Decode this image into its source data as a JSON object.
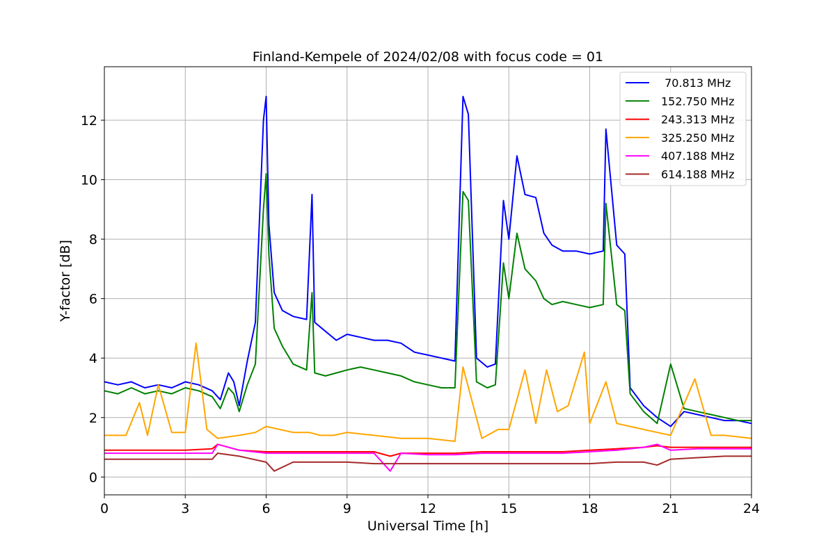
{
  "chart_data": {
    "type": "line",
    "title": "Finland-Kempele of 2024/02/08 with focus code = 01",
    "xlabel": "Universal Time [h]",
    "ylabel": "Y-factor [dB]",
    "xlim": [
      0,
      24
    ],
    "ylim": [
      -0.6,
      13.8
    ],
    "xticks": [
      0,
      3,
      6,
      9,
      12,
      15,
      18,
      21,
      24
    ],
    "yticks": [
      0,
      2,
      4,
      6,
      8,
      10,
      12
    ],
    "grid": true,
    "legend_position": "top-right",
    "series": [
      {
        "name": " 70.813 MHz",
        "color": "#0000ff",
        "x": [
          0,
          0.5,
          1,
          1.5,
          2,
          2.5,
          3,
          3.5,
          4,
          4.3,
          4.6,
          4.8,
          5,
          5.3,
          5.6,
          5.9,
          6.0,
          6.1,
          6.3,
          6.6,
          7.0,
          7.5,
          7.7,
          7.8,
          8.2,
          8.6,
          9.0,
          9.5,
          10.0,
          10.5,
          11.0,
          11.5,
          12.0,
          12.5,
          13.0,
          13.3,
          13.5,
          13.8,
          14.2,
          14.5,
          14.8,
          15.0,
          15.3,
          15.6,
          16.0,
          16.3,
          16.6,
          17.0,
          17.5,
          18.0,
          18.5,
          18.6,
          19.0,
          19.3,
          19.5,
          20.0,
          20.5,
          21.0,
          21.5,
          22.0,
          22.5,
          23.0,
          23.5,
          24.0
        ],
        "values": [
          3.2,
          3.1,
          3.2,
          3.0,
          3.1,
          3.0,
          3.2,
          3.1,
          2.9,
          2.6,
          3.5,
          3.2,
          2.4,
          3.9,
          5.2,
          12.0,
          12.8,
          8.5,
          6.2,
          5.6,
          5.4,
          5.3,
          9.5,
          5.2,
          4.9,
          4.6,
          4.8,
          4.7,
          4.6,
          4.6,
          4.5,
          4.2,
          4.1,
          4.0,
          3.9,
          12.8,
          12.2,
          4.0,
          3.7,
          3.8,
          9.3,
          8.0,
          10.8,
          9.5,
          9.4,
          8.2,
          7.8,
          7.6,
          7.6,
          7.5,
          7.6,
          11.7,
          7.8,
          7.5,
          3.0,
          2.4,
          2.0,
          1.7,
          2.2,
          2.1,
          2.0,
          1.9,
          1.9,
          1.8
        ]
      },
      {
        "name": "152.750 MHz",
        "color": "#008000",
        "x": [
          0,
          0.5,
          1,
          1.5,
          2,
          2.5,
          3,
          3.5,
          4,
          4.3,
          4.6,
          4.8,
          5,
          5.3,
          5.6,
          5.9,
          6.0,
          6.1,
          6.3,
          6.6,
          7.0,
          7.5,
          7.7,
          7.8,
          8.2,
          8.6,
          9.0,
          9.5,
          10.0,
          10.5,
          11.0,
          11.5,
          12.0,
          12.5,
          13.0,
          13.3,
          13.5,
          13.8,
          14.2,
          14.5,
          14.8,
          15.0,
          15.3,
          15.6,
          16.0,
          16.3,
          16.6,
          17.0,
          17.5,
          18.0,
          18.5,
          18.6,
          19.0,
          19.3,
          19.5,
          20.0,
          20.5,
          21.0,
          21.5,
          22.0,
          22.5,
          23.0,
          23.5,
          24.0
        ],
        "values": [
          2.9,
          2.8,
          3.0,
          2.8,
          2.9,
          2.8,
          3.0,
          2.9,
          2.7,
          2.3,
          3.0,
          2.8,
          2.2,
          3.1,
          3.8,
          9.0,
          10.2,
          7.5,
          5.0,
          4.4,
          3.8,
          3.6,
          6.2,
          3.5,
          3.4,
          3.5,
          3.6,
          3.7,
          3.6,
          3.5,
          3.4,
          3.2,
          3.1,
          3.0,
          3.0,
          9.6,
          9.3,
          3.2,
          3.0,
          3.1,
          7.2,
          6.0,
          8.2,
          7.0,
          6.6,
          6.0,
          5.8,
          5.9,
          5.8,
          5.7,
          5.8,
          9.2,
          5.8,
          5.6,
          2.8,
          2.2,
          1.8,
          3.8,
          2.3,
          2.2,
          2.1,
          2.0,
          1.9,
          1.9
        ]
      },
      {
        "name": "243.313 MHz",
        "color": "#ff0000",
        "x": [
          0,
          1,
          2,
          3,
          4,
          4.2,
          5,
          6,
          7,
          8,
          9,
          10,
          10.6,
          11,
          12,
          13,
          14,
          15,
          16,
          17,
          18,
          19,
          20,
          20.5,
          21,
          22,
          23,
          24
        ],
        "values": [
          0.9,
          0.9,
          0.9,
          0.9,
          0.95,
          1.1,
          0.9,
          0.85,
          0.85,
          0.85,
          0.85,
          0.85,
          0.7,
          0.8,
          0.8,
          0.8,
          0.85,
          0.85,
          0.85,
          0.85,
          0.9,
          0.95,
          1.0,
          1.05,
          1.0,
          1.0,
          1.0,
          1.0
        ]
      },
      {
        "name": "325.250 MHz",
        "color": "#ffa500",
        "x": [
          0,
          0.8,
          1.3,
          1.6,
          2.0,
          2.5,
          3.0,
          3.4,
          3.8,
          4.2,
          5.0,
          5.6,
          6.0,
          6.5,
          7.0,
          7.6,
          8.0,
          8.5,
          9.0,
          10.0,
          11.0,
          11.8,
          12.0,
          13.0,
          13.3,
          14.0,
          14.6,
          15.0,
          15.6,
          16.0,
          16.4,
          16.8,
          17.2,
          17.8,
          18.0,
          18.6,
          19.0,
          19.5,
          20.0,
          20.5,
          21.0,
          21.9,
          22.5,
          23.0,
          24.0
        ],
        "values": [
          1.4,
          1.4,
          2.5,
          1.4,
          3.1,
          1.5,
          1.5,
          4.5,
          1.6,
          1.3,
          1.4,
          1.5,
          1.7,
          1.6,
          1.5,
          1.5,
          1.4,
          1.4,
          1.5,
          1.4,
          1.3,
          1.3,
          1.3,
          1.2,
          3.7,
          1.3,
          1.6,
          1.6,
          3.6,
          1.8,
          3.6,
          2.2,
          2.4,
          4.2,
          1.8,
          3.2,
          1.8,
          1.7,
          1.6,
          1.5,
          1.4,
          3.3,
          1.4,
          1.4,
          1.3
        ]
      },
      {
        "name": "407.188 MHz",
        "color": "#ff00ff",
        "x": [
          0,
          1,
          2,
          3,
          4,
          4.2,
          5,
          6,
          7,
          8,
          9,
          10,
          10.6,
          11,
          12,
          13,
          14,
          15,
          16,
          17,
          18,
          19,
          20,
          20.5,
          21,
          22,
          23,
          24
        ],
        "values": [
          0.8,
          0.8,
          0.8,
          0.8,
          0.8,
          1.1,
          0.9,
          0.8,
          0.8,
          0.8,
          0.8,
          0.8,
          0.2,
          0.8,
          0.75,
          0.75,
          0.8,
          0.8,
          0.8,
          0.8,
          0.85,
          0.9,
          1.0,
          1.1,
          0.9,
          0.95,
          0.95,
          0.95
        ]
      },
      {
        "name": "614.188 MHz",
        "color": "#a52a2a",
        "x": [
          0,
          1,
          2,
          3,
          4,
          4.2,
          5,
          5.5,
          6,
          6.3,
          7,
          8,
          9,
          10,
          11,
          12,
          13,
          14,
          15,
          16,
          17,
          18,
          19,
          20,
          20.5,
          21,
          22,
          23,
          24
        ],
        "values": [
          0.6,
          0.6,
          0.6,
          0.6,
          0.6,
          0.8,
          0.7,
          0.6,
          0.5,
          0.2,
          0.5,
          0.5,
          0.5,
          0.45,
          0.45,
          0.45,
          0.45,
          0.45,
          0.45,
          0.45,
          0.45,
          0.45,
          0.5,
          0.5,
          0.4,
          0.6,
          0.65,
          0.7,
          0.7
        ]
      }
    ]
  }
}
